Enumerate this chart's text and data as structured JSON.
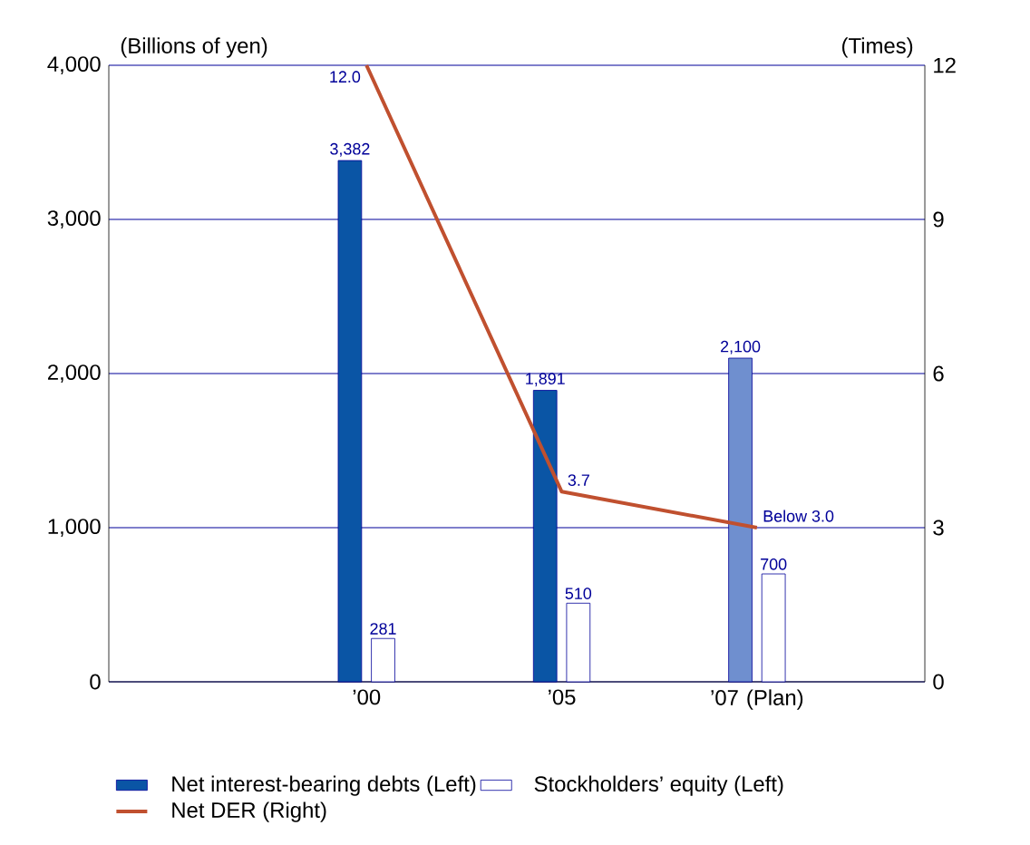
{
  "chart_data": {
    "type": "bar",
    "categories": [
      "’00",
      "’05",
      "’07 (Plan)"
    ],
    "ylabel": "(Billions of yen)",
    "y2label": "(Times)",
    "ylim": [
      0,
      4000
    ],
    "yticks": [
      {
        "value": 0,
        "label": "0"
      },
      {
        "value": 1000,
        "label": "1,000"
      },
      {
        "value": 2000,
        "label": "2,000"
      },
      {
        "value": 3000,
        "label": "3,000"
      },
      {
        "value": 4000,
        "label": "4,000"
      }
    ],
    "y2lim": [
      0,
      12
    ],
    "y2ticks": [
      0,
      3,
      6,
      9,
      12
    ],
    "grid": "y",
    "legend": "bottom left",
    "series": [
      {
        "name": "Net interest-bearing debts (Left)",
        "colors": [
          "#0a55a5",
          "#0a55a5",
          "#6f8fcf"
        ],
        "values": [
          3382,
          1891,
          2100
        ],
        "value_labels": [
          "3,382",
          "1,891",
          "2,100"
        ]
      },
      {
        "name": "Stockholders’ equity (Left)",
        "color": "#ffffff",
        "values": [
          281,
          510,
          700
        ],
        "value_labels": [
          "281",
          "510",
          "700"
        ]
      },
      {
        "name": "Net DER (Right)",
        "type": "line",
        "axis": "y2",
        "color": "#c0502f",
        "values": [
          12.0,
          3.7,
          3.0
        ],
        "value_labels": [
          "12.0",
          "3.7",
          "Below 3.0"
        ]
      }
    ]
  }
}
